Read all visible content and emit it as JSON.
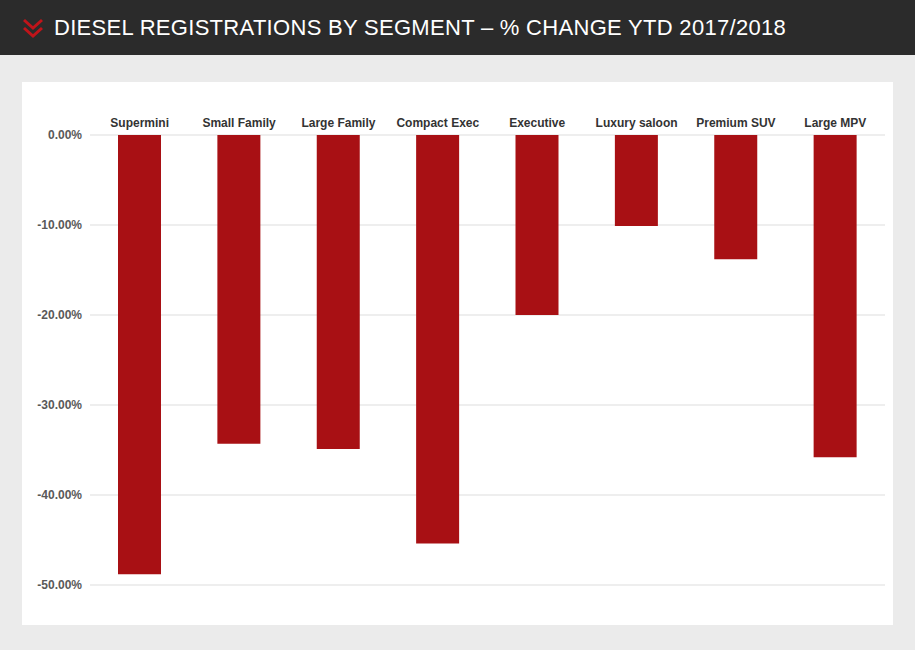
{
  "chart_data": {
    "type": "bar",
    "title": "DIESEL REGISTRATIONS BY SEGMENT – % CHANGE YTD 2017/2018",
    "categories": [
      "Supermini",
      "Small Family",
      "Large Family",
      "Compact Exec",
      "Executive",
      "Luxury saloon",
      "Premium SUV",
      "Large MPV"
    ],
    "values": [
      -48.8,
      -34.3,
      -34.9,
      -45.4,
      -20.0,
      -10.1,
      -13.8,
      -35.8
    ],
    "color": "#a81014",
    "ylim": [
      -50,
      0
    ],
    "yticks": [
      {
        "value": 0,
        "label": "0.00%"
      },
      {
        "value": -10,
        "label": "-10.00%"
      },
      {
        "value": -20,
        "label": "-20.00%"
      },
      {
        "value": -30,
        "label": "-30.00%"
      },
      {
        "value": -40,
        "label": "-40.00%"
      },
      {
        "value": -50,
        "label": "-50.00%"
      }
    ],
    "grid": true
  }
}
